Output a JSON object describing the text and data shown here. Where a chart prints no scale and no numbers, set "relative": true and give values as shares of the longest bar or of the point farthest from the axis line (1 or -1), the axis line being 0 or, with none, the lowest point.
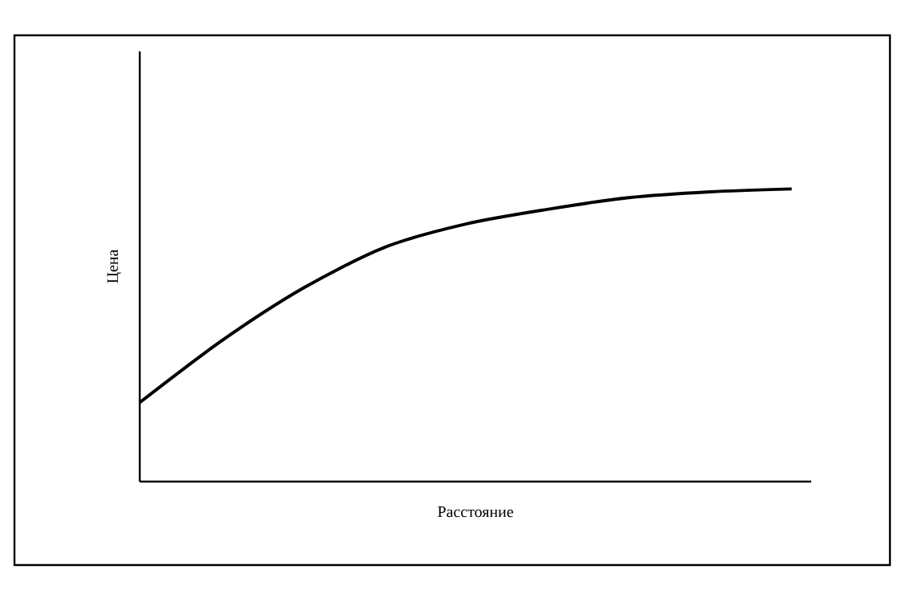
{
  "chart_data": {
    "type": "line",
    "xlabel": "Расстояние",
    "ylabel": "Цена",
    "relative": true,
    "color": "#000000",
    "categories": [
      null,
      null,
      null,
      null,
      null,
      null,
      null,
      null,
      null
    ],
    "values": [
      0.27,
      0.48,
      0.66,
      0.8,
      0.88,
      0.93,
      0.97,
      0.99,
      1.0
    ]
  }
}
